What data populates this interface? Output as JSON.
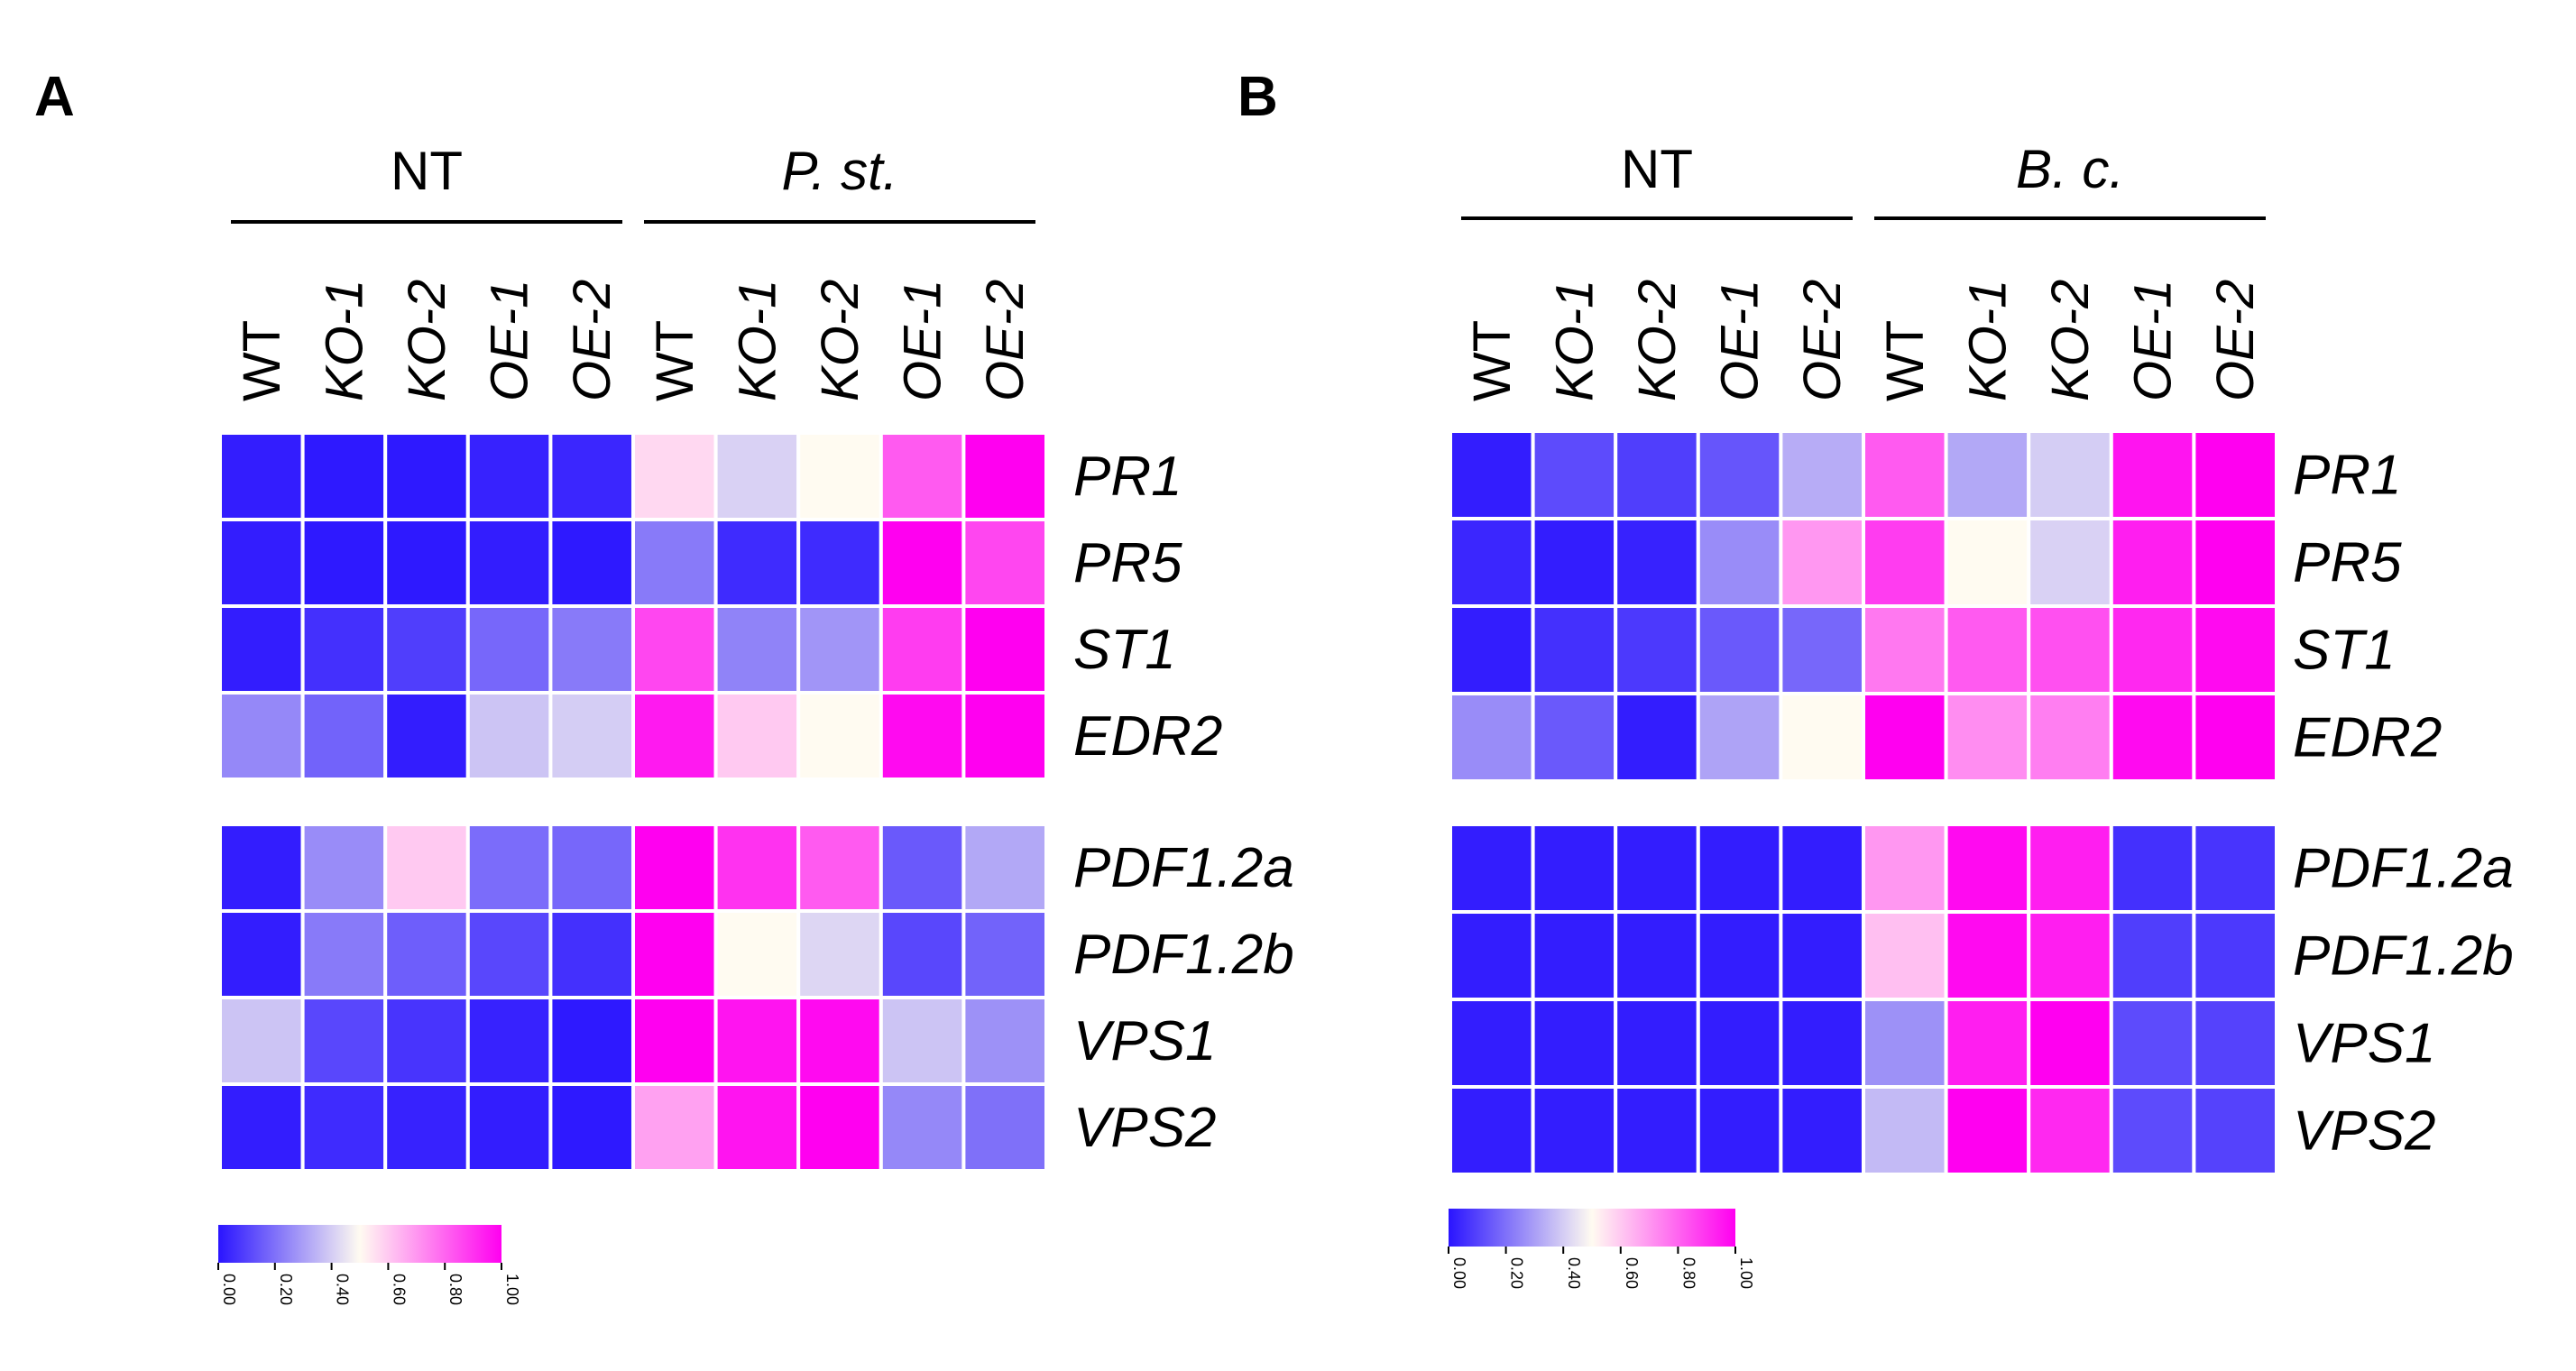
{
  "colors": {
    "low": "#2A14FF",
    "mid": "#FFFBF1",
    "high": "#FF00F0"
  },
  "chart_data": [
    {
      "type": "heatmap",
      "panel": "A",
      "groups": [
        {
          "label": "NT",
          "italic": false
        },
        {
          "label": "P. st.",
          "italic": true
        }
      ],
      "columns": [
        {
          "label": "WT",
          "italic": false
        },
        {
          "label": "KO-1",
          "italic": true
        },
        {
          "label": "KO-2",
          "italic": true
        },
        {
          "label": "OE-1",
          "italic": true
        },
        {
          "label": "OE-2",
          "italic": true
        },
        {
          "label": "WT",
          "italic": false
        },
        {
          "label": "KO-1",
          "italic": true
        },
        {
          "label": "KO-2",
          "italic": true
        },
        {
          "label": "OE-1",
          "italic": true
        },
        {
          "label": "OE-2",
          "italic": true
        }
      ],
      "blocks": [
        {
          "rows": [
            "PR1",
            "PR5",
            "ST1",
            "EDR2"
          ],
          "values": [
            [
              0.02,
              0.01,
              0.01,
              0.03,
              0.04,
              0.57,
              0.41,
              0.5,
              0.82,
              1.0
            ],
            [
              0.02,
              0.01,
              0.01,
              0.02,
              0.01,
              0.22,
              0.05,
              0.05,
              1.0,
              0.86
            ],
            [
              0.02,
              0.06,
              0.09,
              0.18,
              0.22,
              0.86,
              0.24,
              0.28,
              0.88,
              1.0
            ],
            [
              0.25,
              0.17,
              0.02,
              0.38,
              0.4,
              0.95,
              0.6,
              0.5,
              0.98,
              1.0
            ]
          ]
        },
        {
          "rows": [
            "PDF1.2a",
            "PDF1.2b",
            "VPS1",
            "VPS2"
          ],
          "values": [
            [
              0.02,
              0.26,
              0.6,
              0.19,
              0.18,
              1.0,
              0.9,
              0.82,
              0.15,
              0.32
            ],
            [
              0.02,
              0.22,
              0.16,
              0.11,
              0.06,
              1.0,
              0.5,
              0.42,
              0.11,
              0.17
            ],
            [
              0.38,
              0.11,
              0.07,
              0.03,
              0.01,
              1.0,
              0.96,
              0.98,
              0.38,
              0.27
            ],
            [
              0.02,
              0.05,
              0.03,
              0.02,
              0.01,
              0.68,
              0.96,
              1.0,
              0.25,
              0.2
            ]
          ]
        }
      ],
      "colorbar": {
        "ticks": [
          "0.00",
          "0.20",
          "0.40",
          "0.60",
          "0.80",
          "1.00"
        ]
      }
    },
    {
      "type": "heatmap",
      "panel": "B",
      "groups": [
        {
          "label": "NT",
          "italic": false
        },
        {
          "label": "B. c.",
          "italic": true
        }
      ],
      "columns": [
        {
          "label": "WT",
          "italic": false
        },
        {
          "label": "KO-1",
          "italic": true
        },
        {
          "label": "KO-2",
          "italic": true
        },
        {
          "label": "OE-1",
          "italic": true
        },
        {
          "label": "OE-2",
          "italic": true
        },
        {
          "label": "WT",
          "italic": false
        },
        {
          "label": "KO-1",
          "italic": true
        },
        {
          "label": "KO-2",
          "italic": true
        },
        {
          "label": "OE-1",
          "italic": true
        },
        {
          "label": "OE-2",
          "italic": true
        }
      ],
      "blocks": [
        {
          "rows": [
            "PR1",
            "PR5",
            "ST1",
            "EDR2"
          ],
          "values": [
            [
              0.02,
              0.12,
              0.09,
              0.14,
              0.33,
              0.82,
              0.32,
              0.4,
              0.96,
              1.0
            ],
            [
              0.04,
              0.02,
              0.03,
              0.26,
              0.7,
              0.88,
              0.5,
              0.41,
              0.94,
              1.0
            ],
            [
              0.02,
              0.06,
              0.08,
              0.15,
              0.18,
              0.76,
              0.82,
              0.84,
              0.92,
              0.98
            ],
            [
              0.26,
              0.15,
              0.02,
              0.31,
              0.5,
              1.0,
              0.72,
              0.75,
              0.98,
              1.0
            ]
          ]
        },
        {
          "rows": [
            "PDF1.2a",
            "PDF1.2b",
            "VPS1",
            "VPS2"
          ],
          "values": [
            [
              0.02,
              0.02,
              0.02,
              0.02,
              0.02,
              0.7,
              0.98,
              0.94,
              0.06,
              0.07
            ],
            [
              0.02,
              0.02,
              0.02,
              0.02,
              0.02,
              0.62,
              0.98,
              0.94,
              0.09,
              0.08
            ],
            [
              0.02,
              0.02,
              0.02,
              0.02,
              0.02,
              0.27,
              0.94,
              1.0,
              0.12,
              0.1
            ],
            [
              0.02,
              0.02,
              0.02,
              0.02,
              0.02,
              0.36,
              1.0,
              0.92,
              0.12,
              0.1
            ]
          ]
        }
      ],
      "colorbar": {
        "ticks": [
          "0.00",
          "0.20",
          "0.40",
          "0.60",
          "0.80",
          "1.00"
        ]
      }
    }
  ]
}
